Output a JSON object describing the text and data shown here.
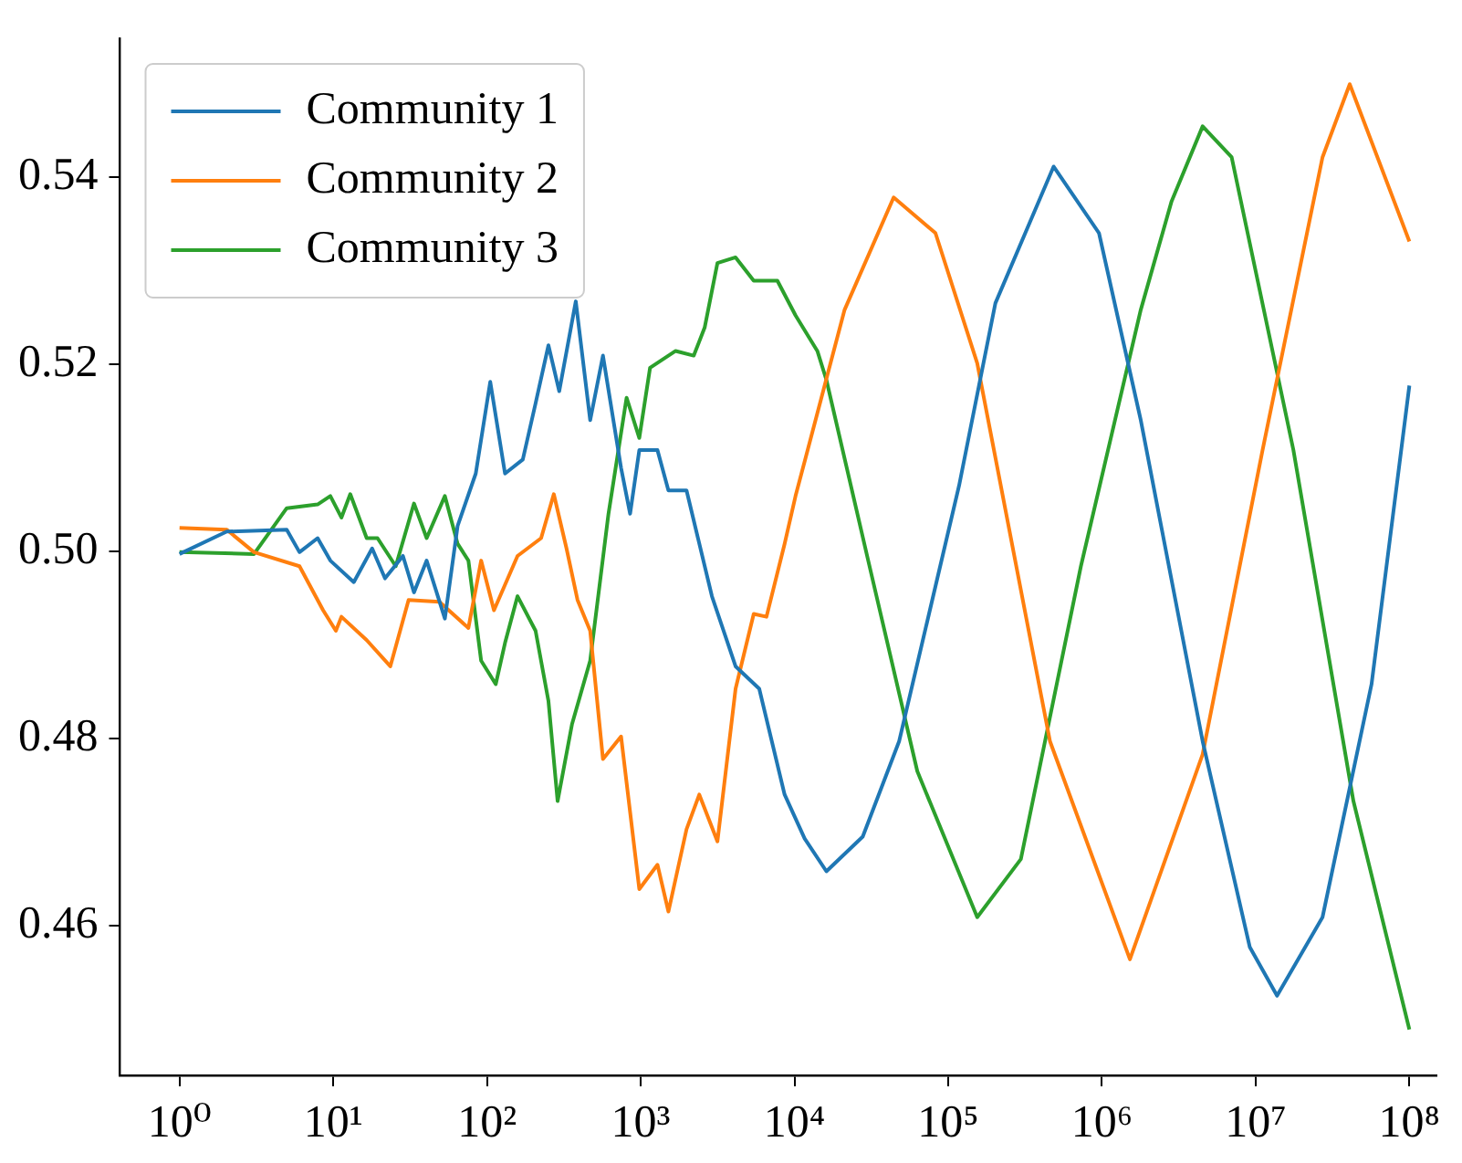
{
  "chart_data": {
    "type": "line",
    "log": "x",
    "grid": false,
    "legend": "top left",
    "marker": "none",
    "line_style": "solid",
    "xlim": [
      0.41,
      150000000
    ],
    "ylim": [
      0.444,
      0.5548
    ],
    "xticks": [
      {
        "value": 1,
        "label": "10⁰"
      },
      {
        "value": 10,
        "label": "10¹"
      },
      {
        "value": 100,
        "label": "10²"
      },
      {
        "value": 1000,
        "label": "10³"
      },
      {
        "value": 10000,
        "label": "10⁴"
      },
      {
        "value": 100000,
        "label": "10⁵"
      },
      {
        "value": 1000000,
        "label": "10⁶"
      },
      {
        "value": 10000000,
        "label": "10⁷"
      },
      {
        "value": 100000000,
        "label": "10⁸"
      }
    ],
    "yticks": [
      {
        "value": 0.46,
        "label": "0.46"
      },
      {
        "value": 0.48,
        "label": "0.48"
      },
      {
        "value": 0.5,
        "label": "0.50"
      },
      {
        "value": 0.52,
        "label": "0.52"
      },
      {
        "value": 0.54,
        "label": "0.54"
      }
    ],
    "series": [
      {
        "name": "Community 1",
        "color": "#1f77b4",
        "x": [
          1,
          2.03,
          4.98,
          6.03,
          7.91,
          9.57,
          13.6,
          17.9,
          21.7,
          28.4,
          33.5,
          40.5,
          53.2,
          64.4,
          84.5,
          105,
          131,
          171,
          207,
          251,
          295,
          378,
          469,
          568,
          745,
          853,
          979,
          1285,
          1514,
          1986,
          2904,
          4140,
          5902,
          8630,
          11650,
          16140,
          27810,
          47970,
          117700,
          202800,
          484900,
          957000,
          1790000,
          4520000,
          9160000,
          13780000,
          27230000,
          56760000,
          100000000
        ],
        "values": [
          0.4997,
          0.5021,
          0.5023,
          0.4999,
          0.5014,
          0.499,
          0.4967,
          0.5003,
          0.4971,
          0.4995,
          0.4956,
          0.499,
          0.4928,
          0.5027,
          0.5083,
          0.5181,
          0.5083,
          0.5098,
          0.5158,
          0.522,
          0.5171,
          0.5267,
          0.514,
          0.5209,
          0.5089,
          0.504,
          0.5108,
          0.5108,
          0.5065,
          0.5065,
          0.4952,
          0.4877,
          0.4853,
          0.474,
          0.4693,
          0.4658,
          0.4695,
          0.4797,
          0.507,
          0.5265,
          0.5411,
          0.534,
          0.514,
          0.4797,
          0.4577,
          0.4525,
          0.4609,
          0.4858,
          0.5177
        ]
      },
      {
        "name": "Community 2",
        "color": "#ff7f0e",
        "x": [
          1,
          2.03,
          3.05,
          6.03,
          8.59,
          10.4,
          11.3,
          16.5,
          23.5,
          30.9,
          49,
          75.7,
          91.6,
          111,
          158,
          225,
          272,
          329,
          388,
          469,
          568,
          745,
          979,
          1285,
          1514,
          1986,
          2404,
          3155,
          4140,
          5433,
          6577,
          8630,
          10163,
          11650,
          21190,
          44190,
          82620,
          154500,
          459300,
          1521000,
          4520000,
          11090000,
          27230000,
          40930000,
          100000000
        ],
        "values": [
          0.5025,
          0.5023,
          0.4999,
          0.4984,
          0.4937,
          0.4915,
          0.493,
          0.4905,
          0.4877,
          0.4948,
          0.4946,
          0.4918,
          0.499,
          0.4937,
          0.4995,
          0.5014,
          0.5061,
          0.5003,
          0.4948,
          0.4915,
          0.4778,
          0.4802,
          0.4639,
          0.4665,
          0.4615,
          0.4703,
          0.474,
          0.469,
          0.4853,
          0.4933,
          0.493,
          0.5008,
          0.5059,
          0.5096,
          0.5258,
          0.5378,
          0.534,
          0.5201,
          0.4797,
          0.4564,
          0.4783,
          0.5108,
          0.5421,
          0.5499,
          0.5331
        ]
      },
      {
        "name": "Community 3",
        "color": "#2ca02c",
        "x": [
          1,
          3.05,
          4.98,
          7.91,
          9.57,
          11.3,
          12.9,
          16.5,
          19.4,
          25.5,
          33.5,
          40.5,
          53.2,
          64.4,
          75.7,
          91.6,
          114,
          131,
          158,
          207,
          251,
          288,
          357,
          469,
          617,
          809,
          979,
          1150,
          1687,
          2213,
          2606,
          3155,
          4140,
          5433,
          7743,
          10163,
          14090,
          16140,
          30190,
          62950,
          154500,
          297000,
          730000,
          1790000,
          2840000,
          4520000,
          6980000,
          17610000,
          43250000,
          100000000
        ],
        "values": [
          0.4999,
          0.4997,
          0.5046,
          0.505,
          0.5059,
          0.5036,
          0.5061,
          0.5014,
          0.5014,
          0.4984,
          0.5051,
          0.5014,
          0.5059,
          0.5008,
          0.499,
          0.4883,
          0.4858,
          0.4902,
          0.4952,
          0.4915,
          0.484,
          0.4733,
          0.4815,
          0.4883,
          0.504,
          0.5164,
          0.5121,
          0.5196,
          0.5214,
          0.5209,
          0.5239,
          0.5308,
          0.5314,
          0.5289,
          0.5289,
          0.5252,
          0.5214,
          0.5183,
          0.499,
          0.4765,
          0.4609,
          0.4671,
          0.4984,
          0.5258,
          0.5374,
          0.5454,
          0.5421,
          0.5108,
          0.4733,
          0.4489
        ]
      }
    ]
  }
}
